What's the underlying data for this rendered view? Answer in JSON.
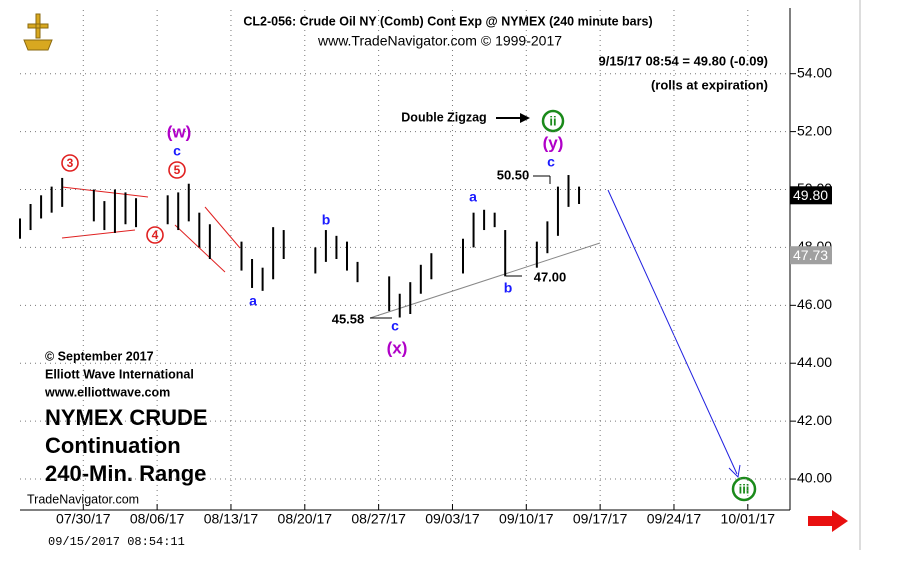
{
  "chart_data": {
    "type": "ohlc-range",
    "title": "CL2-056:  Crude Oil NY (Comb) Cont Exp @ NYMEX  (240 minute bars)",
    "subtitle": "www.TradeNavigator.com © 1999-2017",
    "quote": "9/15/17 08:54 = 49.80 (-0.09)",
    "quote_note": "(rolls at expiration)",
    "x": [
      "07/24/17",
      "07/25/17",
      "07/26/17",
      "07/27/17",
      "07/28/17",
      "07/31/17",
      "08/01/17",
      "08/02/17",
      "08/03/17",
      "08/04/17",
      "08/07/17",
      "08/08/17",
      "08/09/17",
      "08/10/17",
      "08/11/17",
      "08/14/17",
      "08/15/17",
      "08/16/17",
      "08/17/17",
      "08/18/17",
      "08/21/17",
      "08/22/17",
      "08/23/17",
      "08/24/17",
      "08/25/17",
      "08/28/17",
      "08/29/17",
      "08/30/17",
      "08/31/17",
      "09/01/17",
      "09/04/17",
      "09/05/17",
      "09/06/17",
      "09/07/17",
      "09/08/17",
      "09/11/17",
      "09/12/17",
      "09/13/17",
      "09/14/17",
      "09/15/17"
    ],
    "high": [
      49.0,
      49.5,
      49.8,
      50.1,
      50.4,
      50.0,
      49.6,
      50.0,
      49.9,
      49.7,
      49.8,
      49.9,
      50.2,
      49.2,
      48.8,
      48.2,
      47.6,
      47.3,
      48.7,
      48.6,
      48.0,
      48.6,
      48.4,
      48.2,
      47.5,
      47.0,
      46.4,
      46.8,
      47.4,
      47.8,
      48.3,
      49.2,
      49.3,
      49.2,
      48.6,
      48.2,
      48.9,
      50.1,
      50.5,
      50.1
    ],
    "low": [
      48.3,
      48.6,
      49.0,
      49.2,
      49.4,
      48.9,
      48.6,
      48.5,
      48.8,
      48.7,
      48.8,
      48.6,
      48.9,
      48.0,
      47.6,
      47.2,
      46.6,
      46.5,
      46.9,
      47.6,
      47.1,
      47.5,
      47.6,
      47.2,
      46.8,
      45.8,
      45.58,
      45.7,
      46.4,
      46.9,
      47.1,
      48.0,
      48.6,
      48.7,
      47.0,
      47.3,
      47.8,
      48.4,
      49.4,
      49.5
    ],
    "color": "#000000",
    "xlim": [
      "07/24/17",
      "10/05/17"
    ],
    "xticks": [
      "07/30/17",
      "08/06/17",
      "08/13/17",
      "08/20/17",
      "08/27/17",
      "09/03/17",
      "09/10/17",
      "09/17/17",
      "09/24/17",
      "10/01/17"
    ],
    "ylim": [
      39,
      56.2
    ],
    "yticks": [
      {
        "value": 40,
        "label": "40.00"
      },
      {
        "value": 42,
        "label": "42.00"
      },
      {
        "value": 44,
        "label": "44.00"
      },
      {
        "value": 46,
        "label": "46.00"
      },
      {
        "value": 48,
        "label": "48.00"
      },
      {
        "value": 50,
        "label": "50.00"
      },
      {
        "value": 52,
        "label": "52.00"
      },
      {
        "value": 54,
        "label": "54.00"
      }
    ],
    "price_markers": [
      {
        "value": 49.8,
        "label": "49.80",
        "color": "#000000"
      },
      {
        "value": 47.73,
        "label": "47.73",
        "color": "#a0a0a0"
      }
    ],
    "grid": true,
    "annotations": {
      "wave_3": "3",
      "wave_4": "4",
      "wave_5": "5",
      "w": "(w)",
      "w_c": "c",
      "a1": "a",
      "b1": "b",
      "x_low": "45.58",
      "x_c": "c",
      "x": "(x)",
      "a2": "a",
      "b2": "b",
      "b2_low": "47.00",
      "y_high": "50.50",
      "y_c": "c",
      "y": "(y)",
      "ii": "ii",
      "pattern": "Double Zigzag",
      "iii": "iii"
    },
    "copyright": [
      "© September 2017",
      "Elliott Wave International",
      "www.elliottwave.com"
    ],
    "headline": [
      "NYMEX CRUDE",
      "Continuation",
      "240-Min. Range"
    ],
    "source": "TradeNavigator.com",
    "timestamp": "09/15/2017 08:54:11"
  }
}
